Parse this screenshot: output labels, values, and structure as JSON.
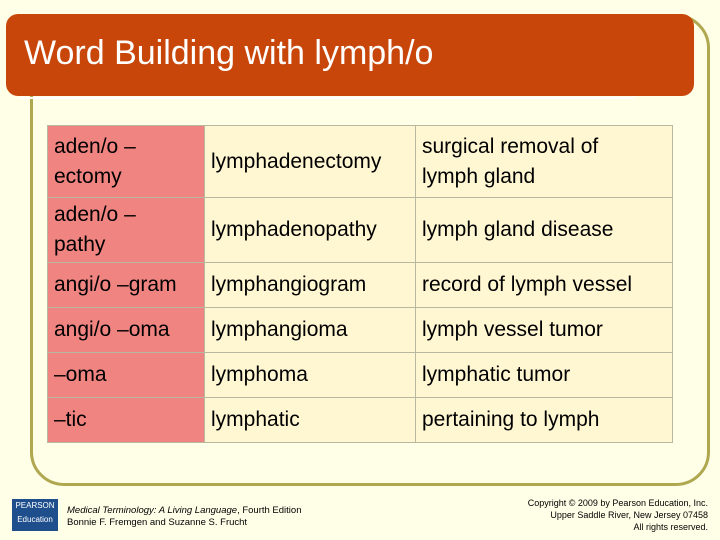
{
  "title": "Word Building with lymph/o",
  "table": {
    "rows": [
      [
        [
          "aden/o –",
          "ectomy"
        ],
        [
          "lymphadenectomy"
        ],
        [
          "surgical removal of",
          "lymph gland"
        ]
      ],
      [
        [
          "aden/o –",
          "pathy"
        ],
        [
          "lymphadenopathy"
        ],
        [
          "lymph gland disease"
        ]
      ],
      [
        [
          "angi/o –gram"
        ],
        [
          "lymphangiogram"
        ],
        [
          "record of lymph vessel"
        ]
      ],
      [
        [
          "angi/o –oma"
        ],
        [
          "lymphangioma"
        ],
        [
          "lymph vessel tumor"
        ]
      ],
      [
        [
          "–oma"
        ],
        [
          "lymphoma"
        ],
        [
          "lymphatic tumor"
        ]
      ],
      [
        [
          "–tic"
        ],
        [
          "lymphatic"
        ],
        [
          "pertaining to lymph"
        ]
      ]
    ]
  },
  "footer": {
    "logo": [
      "PEARSON",
      "Education"
    ],
    "book_title": "Medical Terminology: A Living Language",
    "edition": ", Fourth Edition",
    "authors": "Bonnie F. Fremgen and Suzanne S. Frucht",
    "copyright": [
      "Copyright © 2009 by Pearson Education, Inc.",
      "Upper Saddle River, New Jersey 07458",
      "All rights reserved."
    ]
  }
}
